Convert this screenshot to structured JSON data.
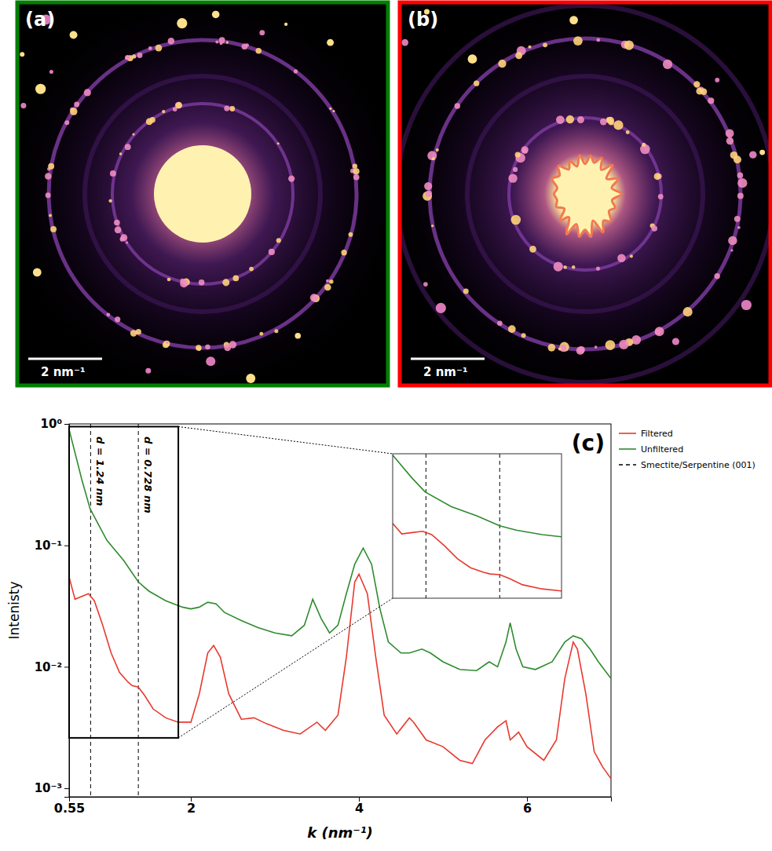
{
  "images": [
    {
      "label": "(a)",
      "scale_bar": "2 nm⁻¹",
      "color": "green"
    },
    {
      "label": "(b)",
      "scale_bar": "2 nm⁻¹",
      "color": "red"
    }
  ],
  "chart_data": {
    "type": "line",
    "panel_label": "(c)",
    "x_label": "k (nm⁻¹)",
    "y_label": "Intenisty",
    "log": "y",
    "legend": "right",
    "xlim": [
      0.55,
      7.0
    ],
    "ylim": [
      0.00085,
      1.0
    ],
    "xticks": [
      0.55,
      2,
      4,
      6
    ],
    "yticks": [
      {
        "value": 0.001,
        "label": "10⁻³"
      },
      {
        "value": 0.01,
        "label": "10⁻²"
      },
      {
        "value": 0.1,
        "label": "10⁻¹"
      },
      {
        "value": 1,
        "label": "10⁰"
      }
    ],
    "series": [
      {
        "name": "Filtered",
        "color": "#e8392e",
        "x": [
          0.55,
          0.62,
          0.7,
          0.78,
          0.85,
          0.95,
          1.05,
          1.15,
          1.25,
          1.3,
          1.374,
          1.45,
          1.55,
          1.7,
          1.85,
          2.0,
          2.1,
          2.2,
          2.27,
          2.35,
          2.45,
          2.6,
          2.75,
          2.9,
          3.1,
          3.3,
          3.5,
          3.6,
          3.75,
          3.85,
          3.95,
          4.0,
          4.1,
          4.2,
          4.3,
          4.45,
          4.6,
          4.65,
          4.8,
          5.0,
          5.2,
          5.35,
          5.5,
          5.65,
          5.75,
          5.8,
          5.9,
          6.0,
          6.2,
          6.35,
          6.45,
          6.55,
          6.6,
          6.7,
          6.8,
          6.9,
          7.0
        ],
        "values": [
          0.055,
          0.036,
          0.038,
          0.04,
          0.035,
          0.022,
          0.013,
          0.009,
          0.0075,
          0.007,
          0.0068,
          0.0058,
          0.0045,
          0.0038,
          0.0035,
          0.0035,
          0.006,
          0.013,
          0.015,
          0.012,
          0.006,
          0.0037,
          0.0038,
          0.0034,
          0.003,
          0.0028,
          0.0035,
          0.003,
          0.004,
          0.012,
          0.05,
          0.058,
          0.04,
          0.012,
          0.004,
          0.0028,
          0.0038,
          0.0035,
          0.0025,
          0.0022,
          0.0017,
          0.0016,
          0.0025,
          0.0032,
          0.0036,
          0.0025,
          0.0029,
          0.0022,
          0.0017,
          0.0025,
          0.008,
          0.016,
          0.014,
          0.006,
          0.002,
          0.0015,
          0.0012
        ]
      },
      {
        "name": "Unfiltered",
        "color": "#2e8b2e",
        "x": [
          0.55,
          0.7,
          0.8,
          1.0,
          1.2,
          1.374,
          1.5,
          1.7,
          1.9,
          2.0,
          2.1,
          2.2,
          2.3,
          2.4,
          2.6,
          2.8,
          3.0,
          3.2,
          3.35,
          3.45,
          3.55,
          3.65,
          3.75,
          3.85,
          3.95,
          4.05,
          4.15,
          4.25,
          4.35,
          4.5,
          4.6,
          4.75,
          4.85,
          5.0,
          5.2,
          5.4,
          5.55,
          5.65,
          5.75,
          5.8,
          5.87,
          5.95,
          6.1,
          6.3,
          6.45,
          6.55,
          6.65,
          6.75,
          6.85,
          7.0
        ],
        "values": [
          0.9,
          0.35,
          0.2,
          0.11,
          0.075,
          0.05,
          0.042,
          0.035,
          0.031,
          0.03,
          0.031,
          0.034,
          0.033,
          0.028,
          0.024,
          0.021,
          0.019,
          0.018,
          0.022,
          0.036,
          0.025,
          0.019,
          0.022,
          0.04,
          0.07,
          0.095,
          0.07,
          0.03,
          0.016,
          0.013,
          0.013,
          0.014,
          0.013,
          0.011,
          0.0095,
          0.0093,
          0.011,
          0.01,
          0.016,
          0.023,
          0.014,
          0.01,
          0.0095,
          0.011,
          0.016,
          0.018,
          0.017,
          0.014,
          0.011,
          0.008
        ]
      }
    ],
    "reference_lines": {
      "name": "Smectite/Serpentine (001)",
      "color": "black",
      "line_style": "dashed",
      "x": [
        0.806,
        1.374
      ],
      "labels": [
        "d = 1.24 nm",
        "d = 0.728 nm"
      ]
    },
    "inset": {
      "xlim": [
        0.55,
        1.85
      ],
      "ylim": [
        0.0026,
        0.95
      ]
    }
  }
}
